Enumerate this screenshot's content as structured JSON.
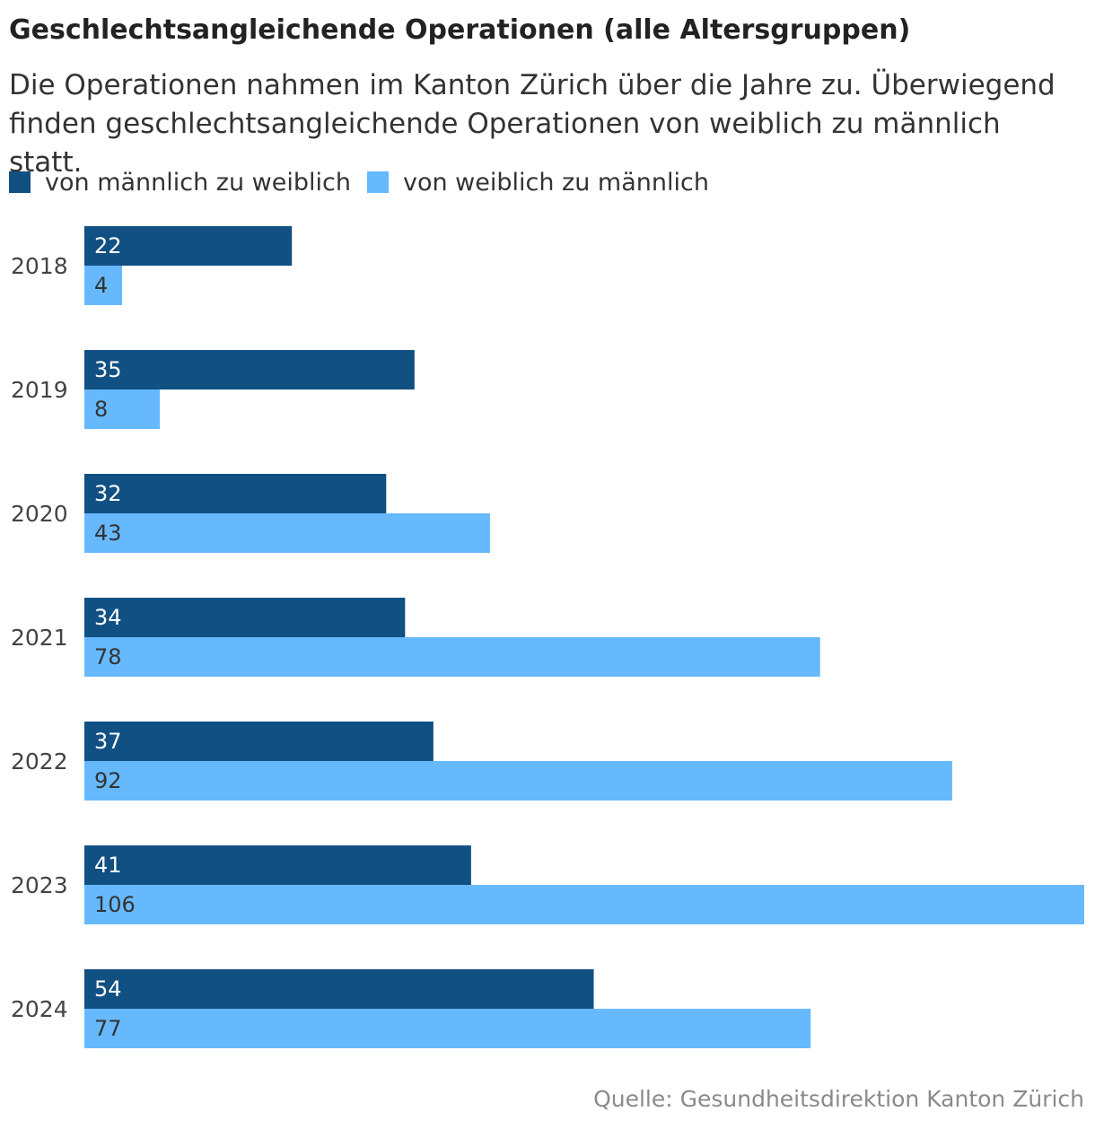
{
  "chart_data": {
    "type": "bar",
    "orientation": "horizontal",
    "title": "Geschlechtsangleichende Operationen (alle Altersgruppen)",
    "subtitle": "Die Operationen nahmen im Kanton Zürich über die Jahre zu. Überwiegend finden geschlechtsangleichende Operationen von weiblich zu männlich statt.",
    "categories": [
      "2018",
      "2019",
      "2020",
      "2021",
      "2022",
      "2023",
      "2024"
    ],
    "series": [
      {
        "name": "von männlich zu weiblich",
        "color": "#115083",
        "label_color": "#ffffff",
        "values": [
          22,
          35,
          32,
          34,
          37,
          41,
          54
        ]
      },
      {
        "name": "von weiblich zu männlich",
        "color": "#66b9fc",
        "label_color": "#333333",
        "values": [
          4,
          8,
          43,
          78,
          92,
          106,
          77
        ]
      }
    ],
    "xlim": [
      0,
      106
    ],
    "grid": false,
    "legend": "top-left",
    "source": "Quelle: Gesundheitsdirektion Kanton Zürich"
  }
}
